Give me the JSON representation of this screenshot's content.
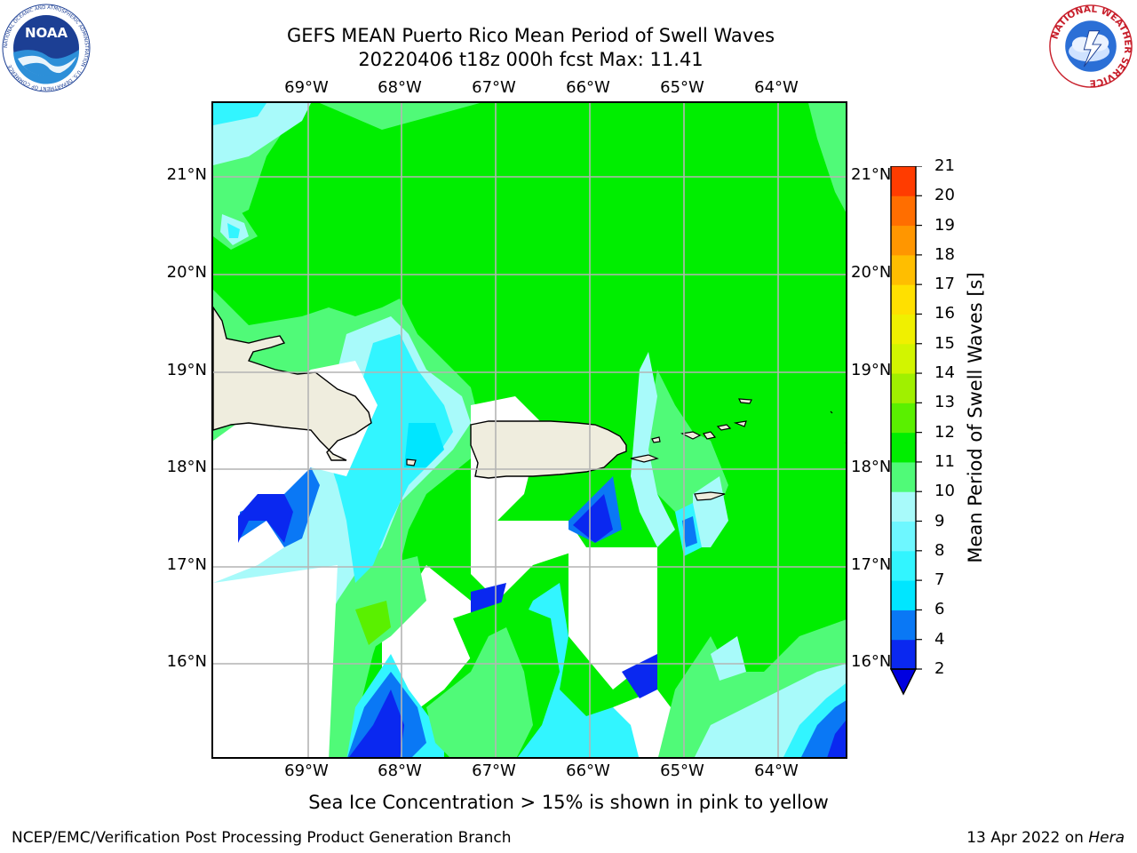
{
  "title_line1": "GEFS MEAN Puerto Rico Mean Period of Swell Waves",
  "title_line2": "20220406 t18z 000h fcst   Max: 11.41",
  "lon_labels": [
    "69°W",
    "68°W",
    "67°W",
    "66°W",
    "65°W",
    "64°W"
  ],
  "lat_labels": [
    "21°N",
    "20°N",
    "19°N",
    "18°N",
    "17°N",
    "16°N"
  ],
  "colorbar": {
    "title": "Mean Period of Swell Waves [s]",
    "levels": [
      "2",
      "4",
      "6",
      "7",
      "8",
      "9",
      "10",
      "11",
      "12",
      "13",
      "14",
      "15",
      "16",
      "17",
      "18",
      "19",
      "20",
      "21"
    ],
    "colors": [
      "#0a28f0",
      "#0a78f5",
      "#00e6ff",
      "#32f5ff",
      "#6ef7ff",
      "#a8fafa",
      "#50fa78",
      "#00ee00",
      "#5af000",
      "#a0f000",
      "#d2f500",
      "#f0f000",
      "#ffe000",
      "#ffbe00",
      "#ff9600",
      "#ff6e00",
      "#ff3c00",
      "#ff0000"
    ],
    "under_color": "#0000e0"
  },
  "colors": {
    "land": "#efedde",
    "ocean_main": "#00ee00",
    "ocean_light": "#50fa78",
    "grid": "#b4b4b4"
  },
  "note": "Sea Ice Concentration > 15% is shown in pink to yellow",
  "footer_left": "NCEP/EMC/Verification Post Processing Product Generation Branch",
  "footer_right_date": "13 Apr 2022 on ",
  "footer_right_machine": "Hera",
  "logo_left": "NOAA",
  "logo_left_ring": "NATIONAL OCEANIC AND ATMOSPHERIC ADMINISTRATION · U.S. DEPARTMENT OF COMMERCE",
  "logo_right_ring": "NATIONAL WEATHER SERVICE"
}
